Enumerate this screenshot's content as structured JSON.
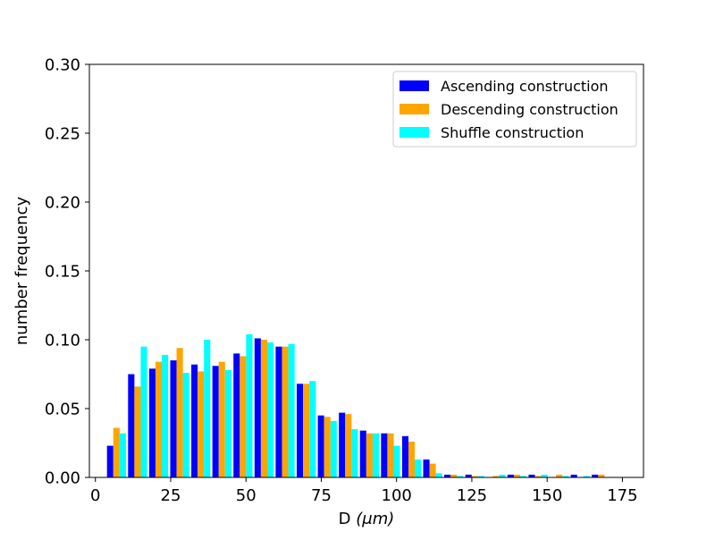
{
  "chart_data": {
    "type": "bar",
    "title": "",
    "xlabel": "D",
    "xlabel_unit": "(μm)",
    "ylabel": "number frequency",
    "xlim": [
      -2,
      182
    ],
    "ylim": [
      0,
      0.3
    ],
    "xticks": [
      0,
      25,
      50,
      75,
      100,
      125,
      150,
      175
    ],
    "yticks": [
      "0.00",
      "0.05",
      "0.10",
      "0.15",
      "0.20",
      "0.25",
      "0.30"
    ],
    "grid": false,
    "legend_position": "top-right",
    "bin_centers": [
      7,
      14,
      21,
      28,
      35,
      42,
      49,
      56,
      63,
      70,
      77,
      84,
      91,
      98,
      105,
      112,
      119,
      126,
      133,
      140,
      147,
      154,
      161,
      168
    ],
    "bar_width": 2.1,
    "series": [
      {
        "name": "Ascending construction",
        "color": "#0000ff",
        "values": [
          0.023,
          0.075,
          0.079,
          0.085,
          0.082,
          0.081,
          0.09,
          0.101,
          0.095,
          0.068,
          0.045,
          0.047,
          0.034,
          0.032,
          0.03,
          0.013,
          0.002,
          0.002,
          0.0,
          0.002,
          0.002,
          0.0,
          0.002,
          0.002
        ]
      },
      {
        "name": " Descending construction",
        "color": "#ffa500",
        "values": [
          0.036,
          0.066,
          0.084,
          0.094,
          0.077,
          0.084,
          0.088,
          0.1,
          0.095,
          0.068,
          0.044,
          0.046,
          0.032,
          0.032,
          0.026,
          0.01,
          0.002,
          0.001,
          0.001,
          0.002,
          0.001,
          0.002,
          0.0,
          0.002
        ]
      },
      {
        "name": "Shuffle construction",
        "color": "#00ffff",
        "values": [
          0.032,
          0.095,
          0.089,
          0.076,
          0.1,
          0.078,
          0.104,
          0.098,
          0.097,
          0.07,
          0.041,
          0.035,
          0.032,
          0.023,
          0.013,
          0.003,
          0.001,
          0.001,
          0.002,
          0.001,
          0.002,
          0.001,
          0.001,
          0.0
        ]
      }
    ]
  }
}
